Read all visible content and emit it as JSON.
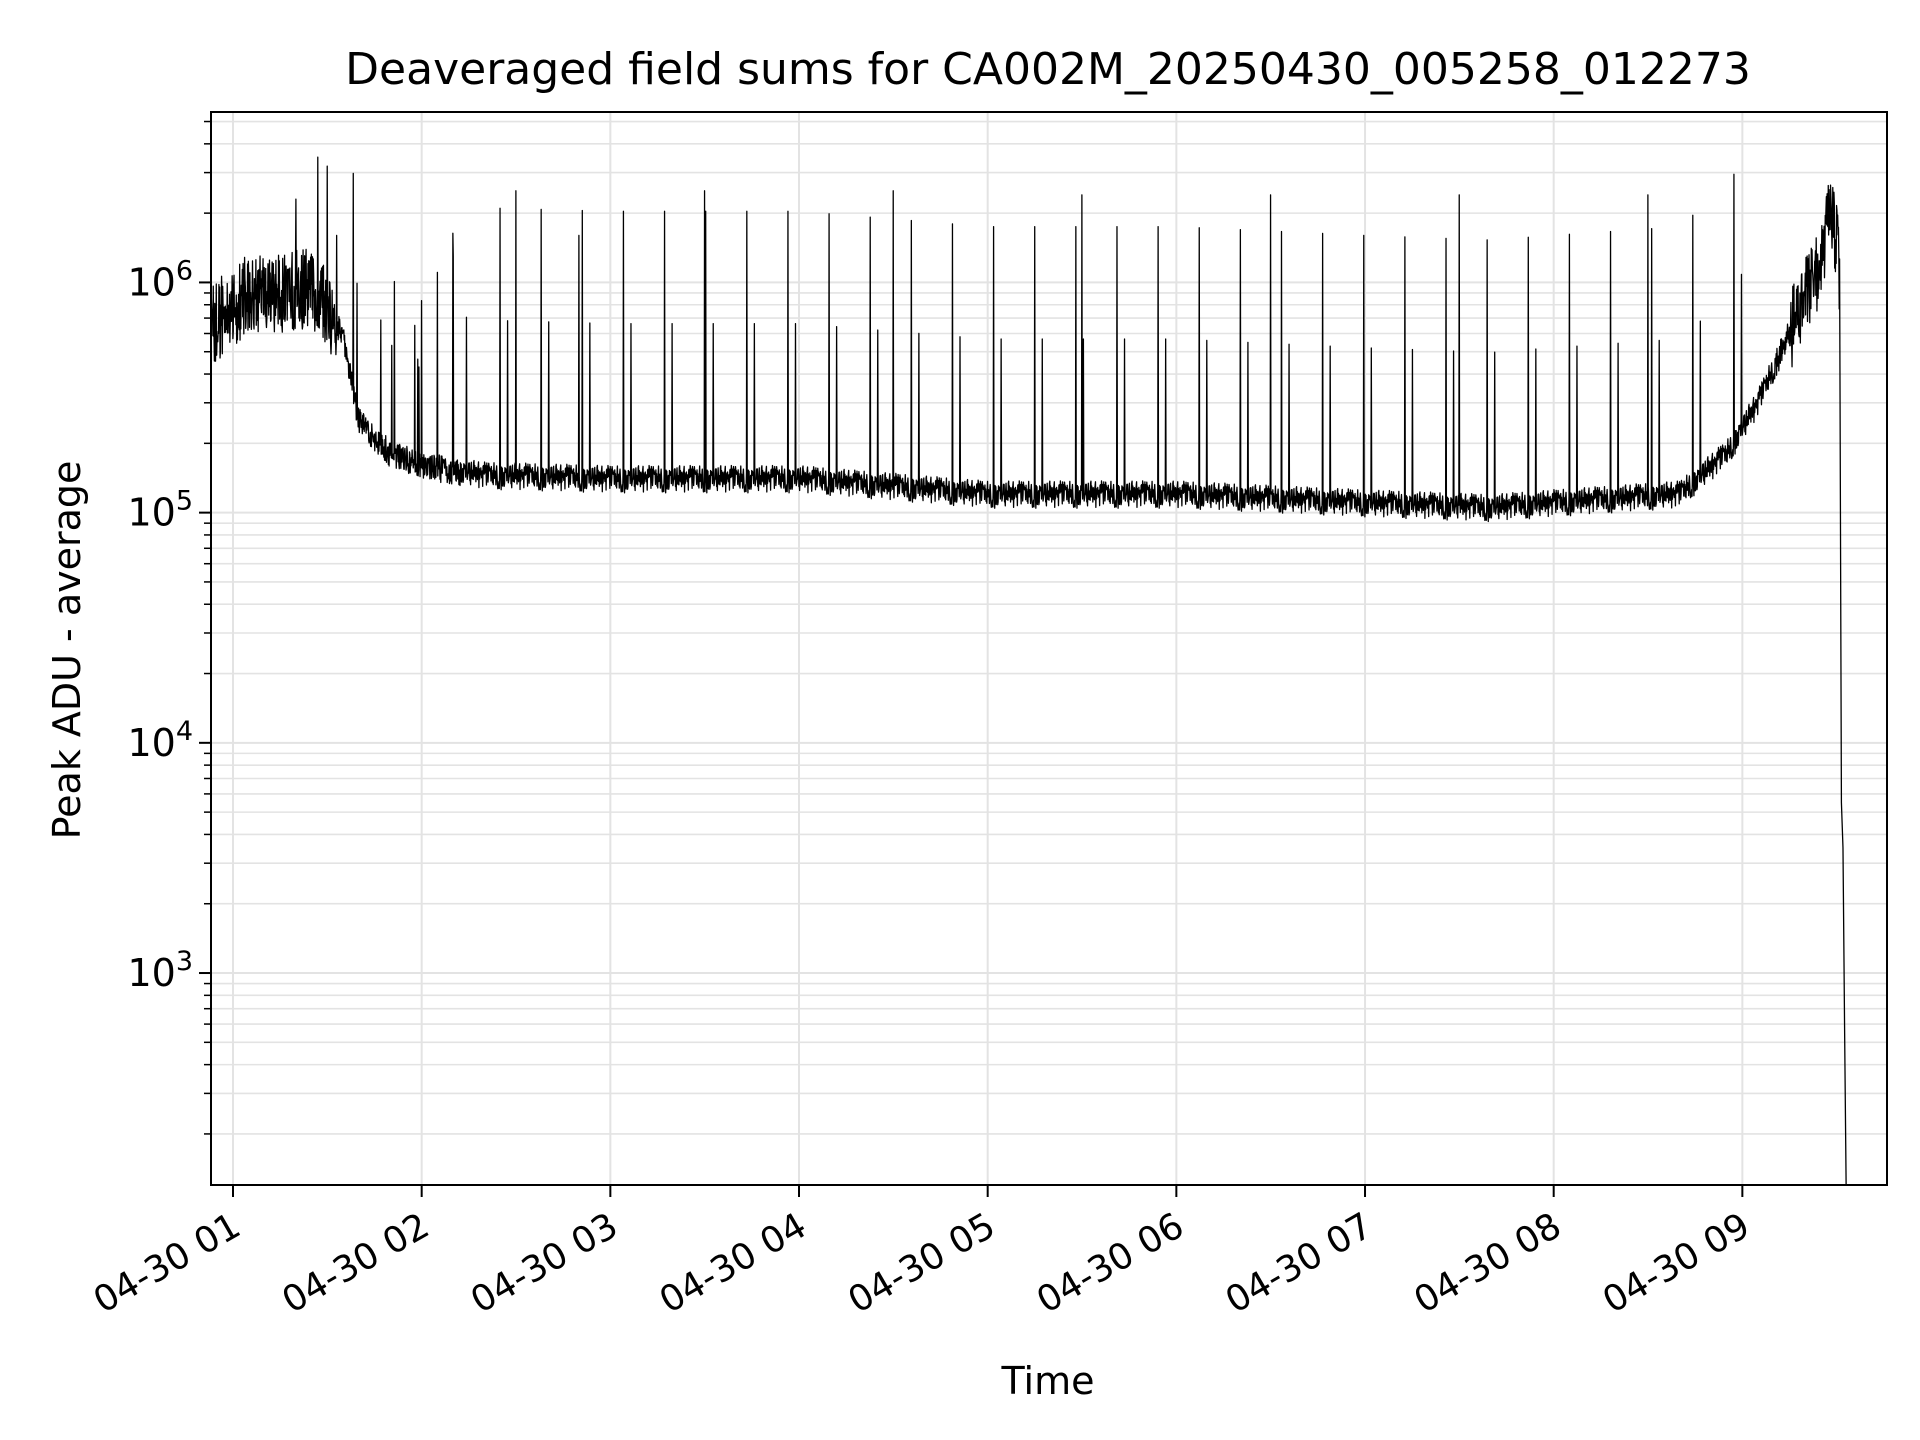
{
  "chart_data": {
    "type": "line",
    "title": "Deaveraged field sums for CA002M_20250430_005258_012273",
    "xlabel": "Time",
    "ylabel": "Peak ADU - average",
    "y_scale": "log",
    "grid": true,
    "legend": "none",
    "xlim": [
      "2025-04-30 00:53",
      "2025-04-30 09:46"
    ],
    "ylim": [
      120,
      5500000
    ],
    "x_ticks": [
      "04-30 01",
      "04-30 02",
      "04-30 03",
      "04-30 04",
      "04-30 05",
      "04-30 06",
      "04-30 07",
      "04-30 08",
      "04-30 09"
    ],
    "x_tick_times": [
      "2025-04-30 01:00",
      "2025-04-30 02:00",
      "2025-04-30 03:00",
      "2025-04-30 04:00",
      "2025-04-30 05:00",
      "2025-04-30 06:00",
      "2025-04-30 07:00",
      "2025-04-30 08:00",
      "2025-04-30 09:00"
    ],
    "y_ticks": [
      {
        "base": "10",
        "exp": "3",
        "value": 1000
      },
      {
        "base": "10",
        "exp": "4",
        "value": 10000
      },
      {
        "base": "10",
        "exp": "5",
        "value": 100000
      },
      {
        "base": "10",
        "exp": "6",
        "value": 1000000
      }
    ],
    "series": [
      {
        "color": "#000000",
        "baseline": [
          {
            "x": "2025-04-30 00:53",
            "y": 650000
          },
          {
            "x": "2025-04-30 01:05",
            "y": 900000
          },
          {
            "x": "2025-04-30 01:15",
            "y": 900000
          },
          {
            "x": "2025-04-30 01:25",
            "y": 950000
          },
          {
            "x": "2025-04-30 01:35",
            "y": 600000
          },
          {
            "x": "2025-04-30 01:40",
            "y": 250000
          },
          {
            "x": "2025-04-30 01:50",
            "y": 180000
          },
          {
            "x": "2025-04-30 02:00",
            "y": 160000
          },
          {
            "x": "2025-04-30 02:20",
            "y": 145000
          },
          {
            "x": "2025-04-30 03:00",
            "y": 140000
          },
          {
            "x": "2025-04-30 04:00",
            "y": 140000
          },
          {
            "x": "2025-04-30 05:00",
            "y": 120000
          },
          {
            "x": "2025-04-30 06:00",
            "y": 120000
          },
          {
            "x": "2025-04-30 07:00",
            "y": 110000
          },
          {
            "x": "2025-04-30 07:40",
            "y": 105000
          },
          {
            "x": "2025-04-30 08:00",
            "y": 110000
          },
          {
            "x": "2025-04-30 08:40",
            "y": 120000
          },
          {
            "x": "2025-04-30 08:55",
            "y": 180000
          },
          {
            "x": "2025-04-30 09:05",
            "y": 300000
          },
          {
            "x": "2025-04-30 09:15",
            "y": 600000
          },
          {
            "x": "2025-04-30 09:25",
            "y": 1200000
          },
          {
            "x": "2025-04-30 09:28",
            "y": 2000000
          },
          {
            "x": "2025-04-30 09:30",
            "y": 1500000
          },
          {
            "x": "2025-04-30 09:31",
            "y": 1000000
          },
          {
            "x": "2025-04-30 09:31:30",
            "y": 5500
          },
          {
            "x": "2025-04-30 09:32",
            "y": 3500
          },
          {
            "x": "2025-04-30 09:32:30",
            "y": 600
          },
          {
            "x": "2025-04-30 09:33",
            "y": 120
          }
        ],
        "spikes": [
          {
            "x": "2025-04-30 01:20",
            "y": 2300000
          },
          {
            "x": "2025-04-30 01:27",
            "y": 3500000
          },
          {
            "x": "2025-04-30 01:30",
            "y": 3200000
          },
          {
            "x": "2025-04-30 01:33",
            "y": 1600000
          },
          {
            "x": "2025-04-30 02:10",
            "y": 1300000
          },
          {
            "x": "2025-04-30 02:30",
            "y": 2500000
          },
          {
            "x": "2025-04-30 02:50",
            "y": 1600000
          },
          {
            "x": "2025-04-30 03:30",
            "y": 2500000
          },
          {
            "x": "2025-04-30 04:30",
            "y": 2500000
          },
          {
            "x": "2025-04-30 05:30",
            "y": 2400000
          },
          {
            "x": "2025-04-30 06:30",
            "y": 2400000
          },
          {
            "x": "2025-04-30 07:30",
            "y": 2400000
          },
          {
            "x": "2025-04-30 08:30",
            "y": 2400000
          }
        ]
      }
    ]
  }
}
